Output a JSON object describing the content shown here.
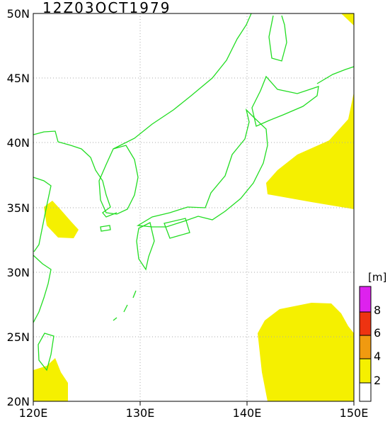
{
  "title": "12Z03OCT1979",
  "x_axis": {
    "labels": [
      "120E",
      "130E",
      "140E",
      "150E"
    ]
  },
  "y_axis": {
    "labels": [
      "20N",
      "25N",
      "30N",
      "35N",
      "40N",
      "45N",
      "50N"
    ]
  },
  "colorbar": {
    "unit": "[m]",
    "labels": [
      "2",
      "4",
      "6",
      "8"
    ]
  }
}
